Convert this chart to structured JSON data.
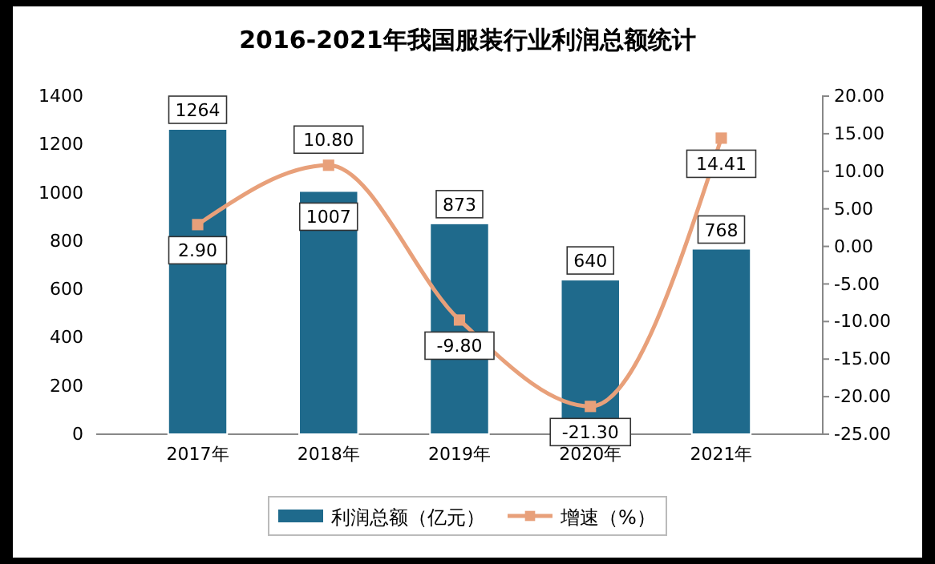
{
  "chart_data": {
    "type": "bar",
    "title": "2016-2021年我国服装行业利润总额统计",
    "categories": [
      "2017年",
      "2018年",
      "2019年",
      "2020年",
      "2021年"
    ],
    "series": [
      {
        "name": "利润总额（亿元）",
        "color": "#1f6a8c",
        "values": [
          1264,
          1007,
          873,
          640,
          768
        ]
      },
      {
        "name": "增速（%）",
        "type": "line",
        "axis": "y2",
        "color": "#e8a07a",
        "values": [
          2.9,
          10.8,
          -9.8,
          -21.3,
          14.41
        ],
        "value_labels": [
          "2.90",
          "10.80",
          "-9.80",
          "-21.30",
          "14.41"
        ]
      }
    ],
    "data_labels": true,
    "marker": "square",
    "ylim": [
      0,
      1400
    ],
    "yticks": [
      0,
      200,
      400,
      600,
      800,
      1000,
      1200,
      1400
    ],
    "y2lim": [
      -25,
      20
    ],
    "y2ticks": [
      {
        "value": 20,
        "label": "20.00"
      },
      {
        "value": 15,
        "label": "15.00"
      },
      {
        "value": 10,
        "label": "10.00"
      },
      {
        "value": 5,
        "label": "5.00"
      },
      {
        "value": 0,
        "label": "0.00"
      },
      {
        "value": -5,
        "label": "-5.00"
      },
      {
        "value": -10,
        "label": "-10.00"
      },
      {
        "value": -15,
        "label": "-15.00"
      },
      {
        "value": -20,
        "label": "-20.00"
      },
      {
        "value": -25,
        "label": "-25.00"
      }
    ],
    "grid": false,
    "legend": "bottom"
  }
}
